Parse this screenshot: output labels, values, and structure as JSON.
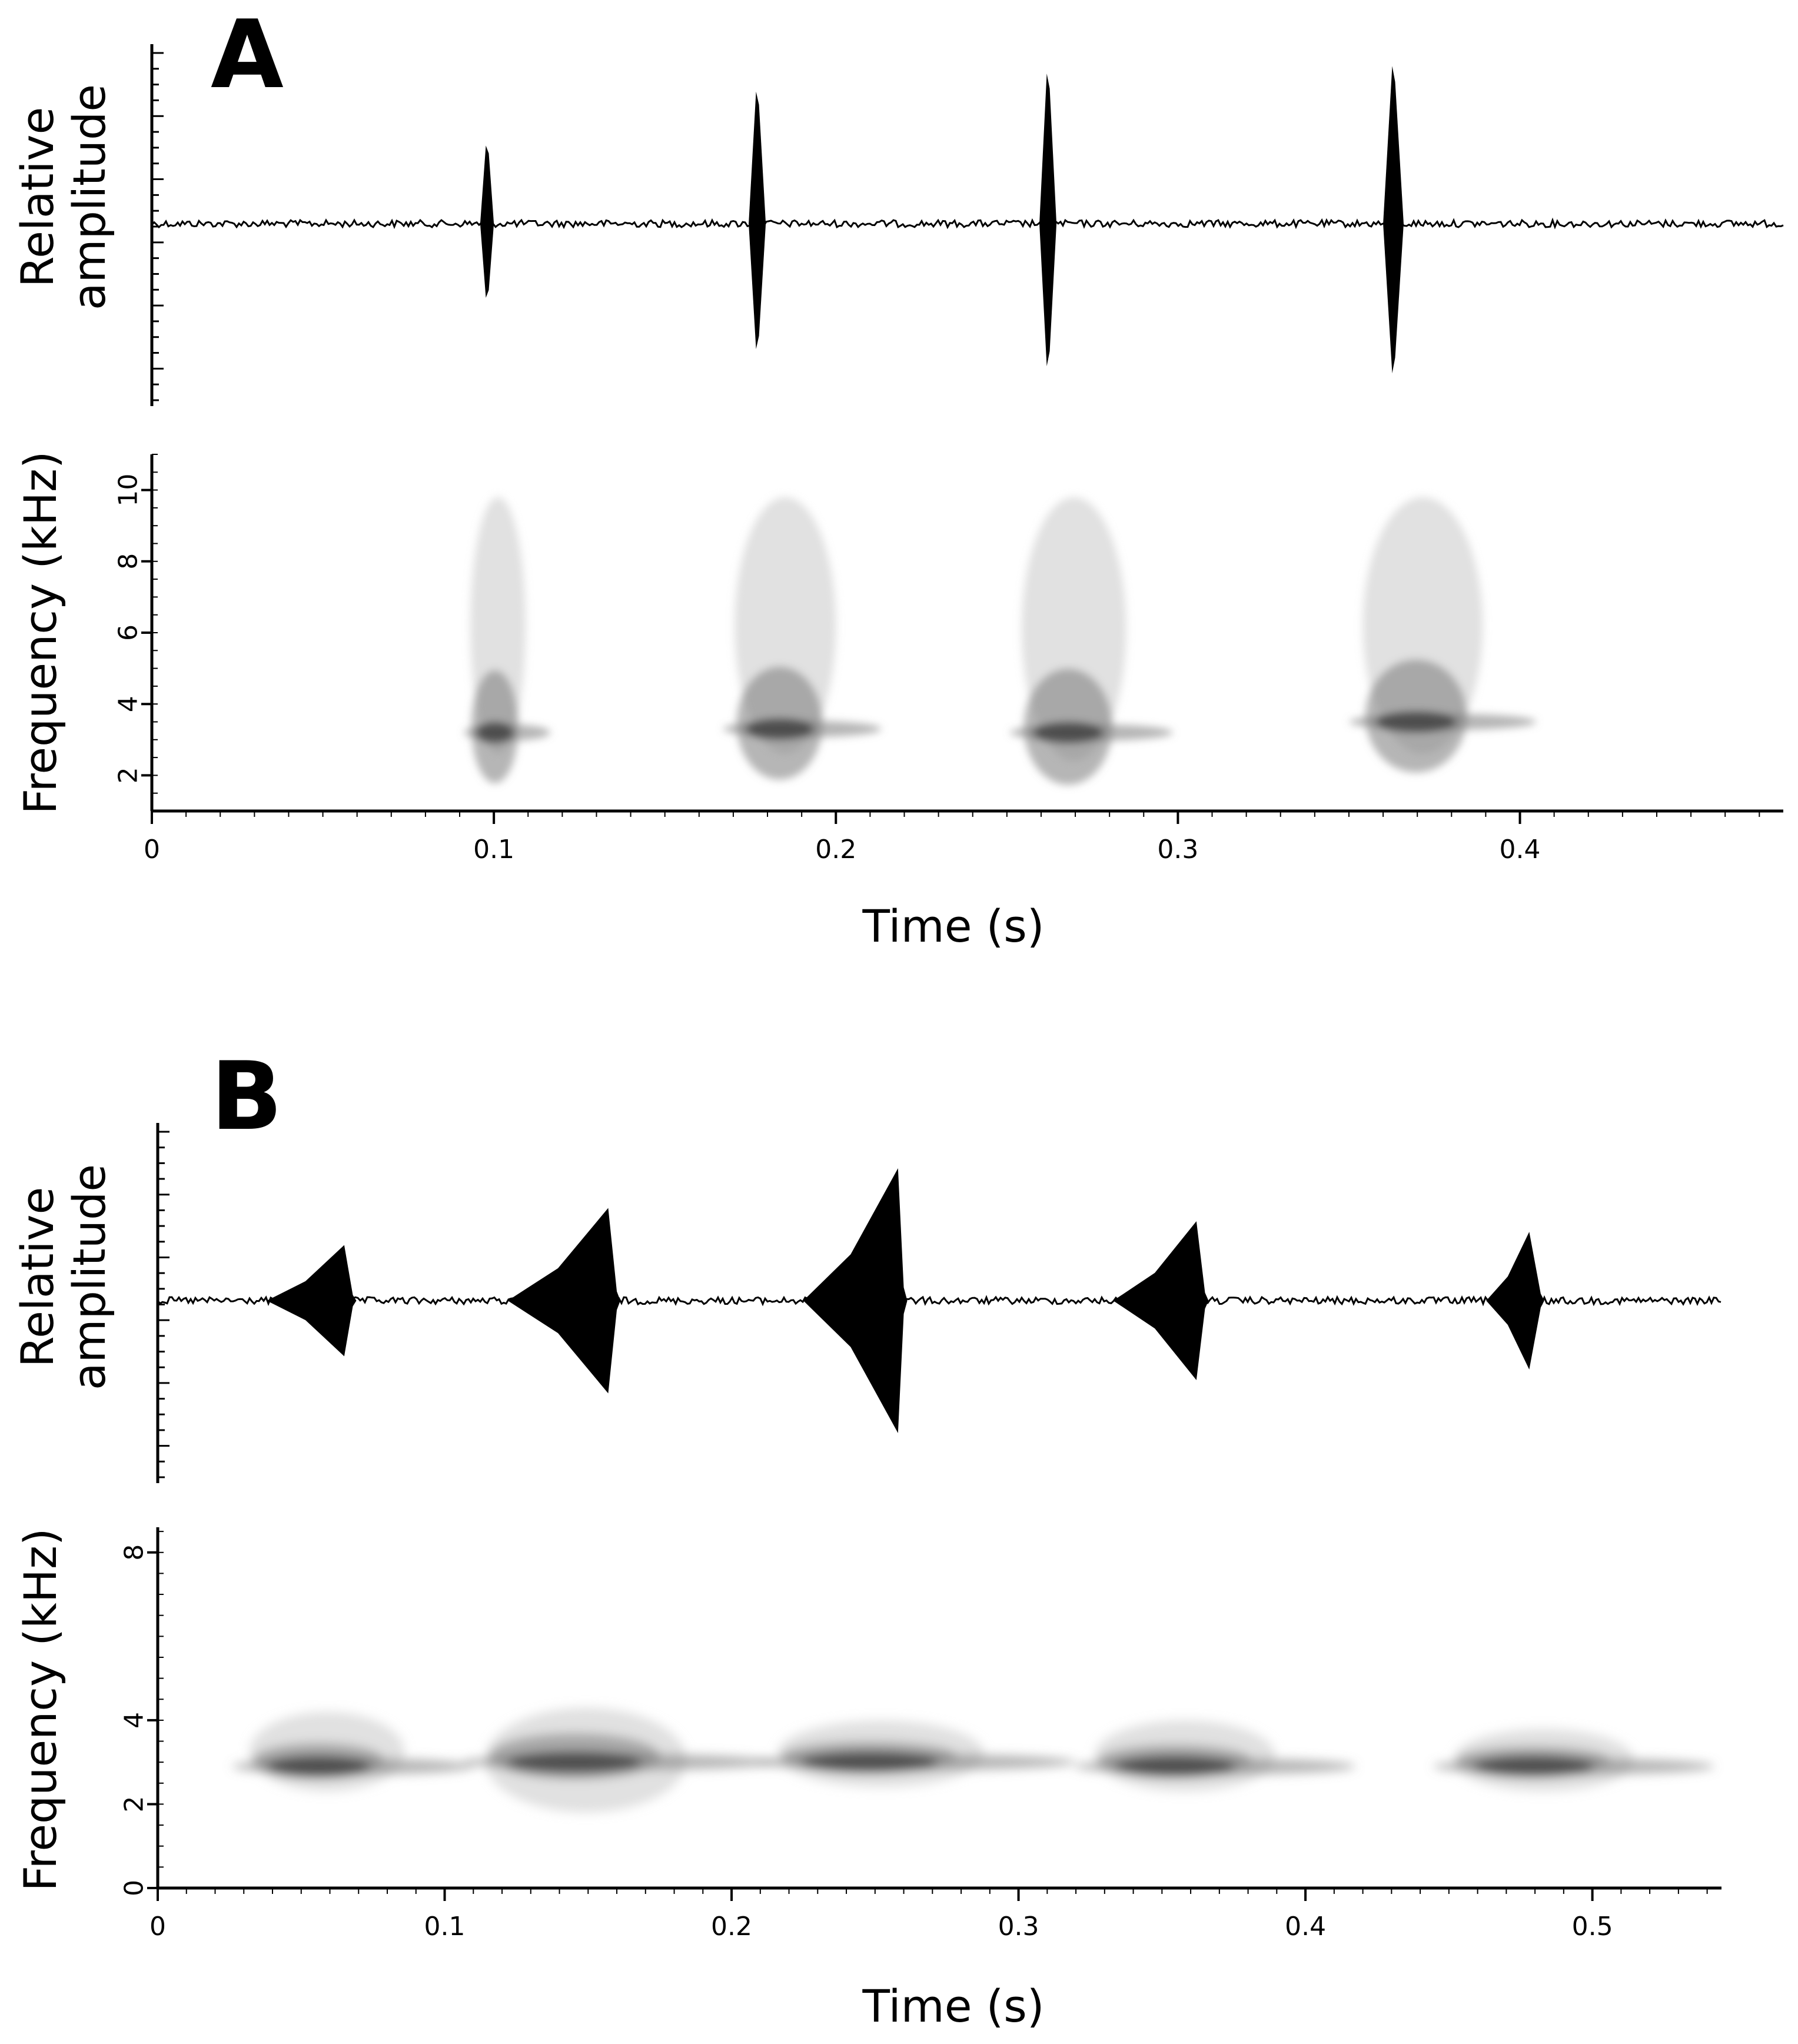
{
  "chart_data": [
    {
      "panel": "A",
      "type": "waveform+spectrogram",
      "waveform": {
        "ylabel": "Relative amplitude",
        "ylabel_lines": [
          "Relative",
          "amplitude"
        ],
        "pulses": [
          {
            "time": 0.098,
            "amplitude": 0.52,
            "duration": 0.004
          },
          {
            "time": 0.177,
            "amplitude": 0.88,
            "duration": 0.005
          },
          {
            "time": 0.262,
            "amplitude": 1.0,
            "duration": 0.005
          },
          {
            "time": 0.363,
            "amplitude": 1.05,
            "duration": 0.006
          }
        ]
      },
      "spectrogram": {
        "ylabel": "Frequency (kHz)",
        "ylim": [
          1,
          11
        ],
        "yticks": [
          "2",
          "4",
          "6",
          "8",
          "10"
        ],
        "notes": [
          {
            "start": 0.094,
            "end": 0.112,
            "dominant_khz": 3.2,
            "band_khz": [
              2.6,
              9.8
            ]
          },
          {
            "start": 0.172,
            "end": 0.205,
            "dominant_khz": 3.3,
            "band_khz": [
              2.6,
              9.8
            ]
          },
          {
            "start": 0.256,
            "end": 0.29,
            "dominant_khz": 3.2,
            "band_khz": [
              2.4,
              9.8
            ]
          },
          {
            "start": 0.356,
            "end": 0.395,
            "dominant_khz": 3.5,
            "band_khz": [
              2.6,
              9.8
            ]
          }
        ]
      },
      "xlabel": "Time (s)",
      "xlim": [
        0,
        0.477
      ],
      "xticks": [
        "0",
        "0.1",
        "0.2",
        "0.3",
        "0.4"
      ]
    },
    {
      "panel": "B",
      "type": "waveform+spectrogram",
      "waveform": {
        "ylabel": "Relative amplitude",
        "ylabel_lines": [
          "Relative",
          "amplitude"
        ],
        "notes": [
          {
            "start": 0.038,
            "end": 0.068,
            "peak_time": 0.065,
            "amplitude": 0.42
          },
          {
            "start": 0.122,
            "end": 0.16,
            "peak_time": 0.157,
            "amplitude": 0.7
          },
          {
            "start": 0.225,
            "end": 0.26,
            "peak_time": 0.258,
            "amplitude": 1.0
          },
          {
            "start": 0.333,
            "end": 0.365,
            "peak_time": 0.362,
            "amplitude": 0.6
          },
          {
            "start": 0.463,
            "end": 0.482,
            "peak_time": 0.478,
            "amplitude": 0.52
          }
        ]
      },
      "spectrogram": {
        "ylabel": "Frequency (kHz)",
        "ylim": [
          0,
          8.6
        ],
        "yticks": [
          "0",
          "2",
          "4",
          "8"
        ],
        "notes": [
          {
            "start": 0.035,
            "end": 0.095,
            "dominant_khz": 2.9,
            "band_khz": [
              2.3,
              4.2
            ]
          },
          {
            "start": 0.118,
            "end": 0.196,
            "dominant_khz": 3.0,
            "band_khz": [
              1.8,
              4.3
            ]
          },
          {
            "start": 0.22,
            "end": 0.3,
            "dominant_khz": 3.0,
            "band_khz": [
              2.4,
              4.0
            ]
          },
          {
            "start": 0.33,
            "end": 0.4,
            "dominant_khz": 2.9,
            "band_khz": [
              2.3,
              4.0
            ]
          },
          {
            "start": 0.455,
            "end": 0.525,
            "dominant_khz": 2.9,
            "band_khz": [
              2.3,
              3.8
            ]
          }
        ]
      },
      "xlabel": "Time (s)",
      "xlim": [
        0,
        0.545
      ],
      "xticks": [
        "0",
        "0.1",
        "0.2",
        "0.3",
        "0.4",
        "0.5"
      ]
    }
  ],
  "colors": {
    "ink": "#000000",
    "spectro_dark": "#3a3a3a",
    "spectro_mid": "#7a7a7a",
    "spectro_light": "#c8c8c8",
    "background": "#ffffff"
  }
}
